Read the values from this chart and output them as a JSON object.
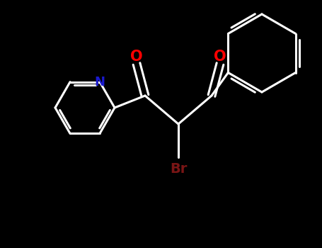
{
  "bg_color": "#000000",
  "bond_color": "#ffffff",
  "O_color": "#ff0000",
  "N_color": "#1a1acd",
  "Br_color": "#7a1515",
  "line_width": 2.2,
  "figsize": [
    4.55,
    3.5
  ],
  "dpi": 100,
  "xlim": [
    0,
    455
  ],
  "ylim": [
    0,
    350
  ]
}
